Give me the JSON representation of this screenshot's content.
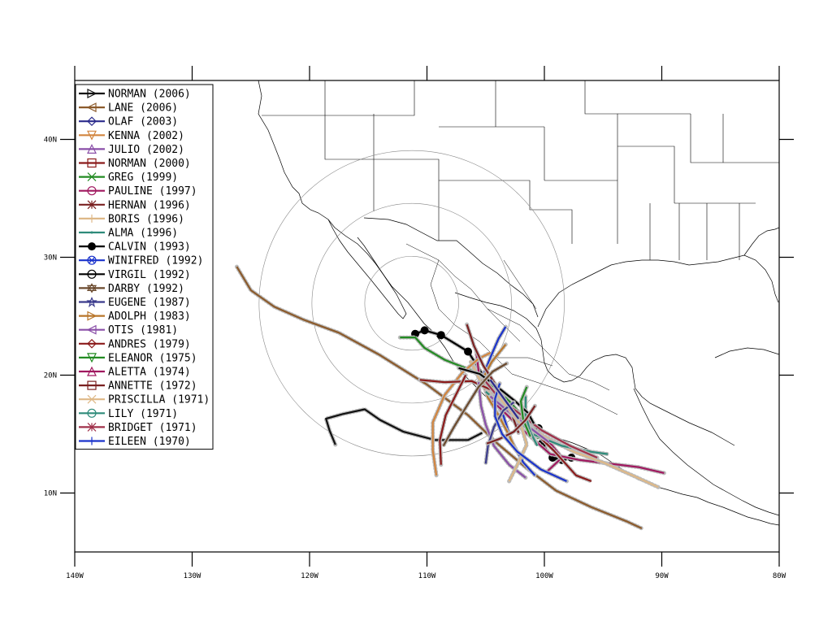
{
  "map": {
    "x_axis": {
      "range": [
        -140,
        -80
      ],
      "ticks": [
        {
          "value": -140,
          "label": "140W"
        },
        {
          "value": -130,
          "label": "130W"
        },
        {
          "value": -120,
          "label": "120W"
        },
        {
          "value": -110,
          "label": "110W"
        },
        {
          "value": -100,
          "label": "100W"
        },
        {
          "value": -90,
          "label": "90W"
        },
        {
          "value": -80,
          "label": "80W"
        }
      ]
    },
    "y_axis": {
      "range": [
        5,
        45
      ],
      "ticks": [
        {
          "value": 10,
          "label": "10N"
        },
        {
          "value": 20,
          "label": "20N"
        },
        {
          "value": 30,
          "label": "30N"
        },
        {
          "value": 40,
          "label": "40N"
        }
      ]
    },
    "range_rings": {
      "center": [
        -111.3,
        26.1
      ],
      "radii_deg": [
        4,
        8.5,
        13
      ]
    },
    "legend": {
      "placement": "top-left",
      "items": [
        {
          "label": "NORMAN (2006)",
          "color": "#111111",
          "marker": "triangle-right",
          "width": 2
        },
        {
          "label": "LANE (2006)",
          "color": "#8b5a2b",
          "marker": "triangle-left",
          "width": 2
        },
        {
          "label": "OLAF (2003)",
          "color": "#2b2b8c",
          "marker": "diamond",
          "width": 2
        },
        {
          "label": "KENNA (2002)",
          "color": "#d2853f",
          "marker": "triangle-down",
          "width": 2
        },
        {
          "label": "JULIO (2002)",
          "color": "#8a4fa8",
          "marker": "triangle-up",
          "width": 2
        },
        {
          "label": "NORMAN (2000)",
          "color": "#8b1a1a",
          "marker": "square",
          "width": 2
        },
        {
          "label": "GREG (1999)",
          "color": "#228b22",
          "marker": "x",
          "width": 2
        },
        {
          "label": "PAULINE (1997)",
          "color": "#a0185f",
          "marker": "circle",
          "width": 2
        },
        {
          "label": "HERNAN (1996)",
          "color": "#7a2020",
          "marker": "asterisk",
          "width": 2
        },
        {
          "label": "BORIS (1996)",
          "color": "#deb887",
          "marker": "plus",
          "width": 2
        },
        {
          "label": "ALMA (1996)",
          "color": "#2e8b7a",
          "marker": "dot",
          "width": 2
        },
        {
          "label": "CALVIN (1993)",
          "color": "#000000",
          "marker": "big-dot",
          "width": 2
        },
        {
          "label": "WINIFRED (1992)",
          "color": "#1a33cc",
          "marker": "circle-x",
          "width": 2
        },
        {
          "label": "VIRGIL (1992)",
          "color": "#000000",
          "marker": "circle-bar",
          "width": 2
        },
        {
          "label": "DARBY (1992)",
          "color": "#6b4a2e",
          "marker": "hexagram",
          "width": 2
        },
        {
          "label": "EUGENE (1987)",
          "color": "#3a3a8c",
          "marker": "star",
          "width": 2
        },
        {
          "label": "ADOLPH (1983)",
          "color": "#b8762a",
          "marker": "triangle-right",
          "width": 2
        },
        {
          "label": "OTIS (1981)",
          "color": "#8a4fa8",
          "marker": "triangle-left",
          "width": 2
        },
        {
          "label": "ANDRES (1979)",
          "color": "#8b1a1a",
          "marker": "diamond",
          "width": 2
        },
        {
          "label": "ELEANOR (1975)",
          "color": "#228b22",
          "marker": "triangle-down",
          "width": 2
        },
        {
          "label": "ALETTA (1974)",
          "color": "#a0185f",
          "marker": "triangle-up",
          "width": 2
        },
        {
          "label": "ANNETTE (1972)",
          "color": "#7a2020",
          "marker": "square",
          "width": 2
        },
        {
          "label": "PRISCILLA (1971)",
          "color": "#deb887",
          "marker": "x",
          "width": 2
        },
        {
          "label": "LILY (1971)",
          "color": "#2e8b7a",
          "marker": "circle",
          "width": 2
        },
        {
          "label": "BRIDGET (1971)",
          "color": "#a0304a",
          "marker": "asterisk",
          "width": 2
        },
        {
          "label": "EILEEN (1970)",
          "color": "#1a33cc",
          "marker": "plus",
          "width": 2
        }
      ]
    },
    "tracks": [
      {
        "name": "LANE (2006)",
        "color": "#8b5a2b",
        "points": [
          [
            -126.2,
            29.2
          ],
          [
            -125,
            27.2
          ],
          [
            -123,
            25.8
          ],
          [
            -120.5,
            24.7
          ],
          [
            -117.5,
            23.6
          ],
          [
            -114,
            21.7
          ],
          [
            -110,
            19.2
          ],
          [
            -106.5,
            16.6
          ],
          [
            -104,
            14.2
          ],
          [
            -101.5,
            12.1
          ],
          [
            -99,
            10.2
          ],
          [
            -96,
            8.8
          ],
          [
            -93,
            7.6
          ],
          [
            -91.7,
            7.0
          ]
        ]
      },
      {
        "name": "NORMAN (2006)",
        "color": "#111111",
        "points": [
          [
            -117.8,
            14.1
          ],
          [
            -118.3,
            15.3
          ],
          [
            -118.6,
            16.3
          ],
          [
            -117.2,
            16.7
          ],
          [
            -115.3,
            17.1
          ],
          [
            -114,
            16.2
          ],
          [
            -112,
            15.2
          ],
          [
            -109.3,
            14.5
          ],
          [
            -106.5,
            14.5
          ],
          [
            -105.3,
            15.1
          ]
        ]
      },
      {
        "name": "CALVIN (1993)",
        "color": "#000000",
        "points": [
          [
            -111,
            23.5
          ],
          [
            -110.2,
            23.8
          ],
          [
            -108.8,
            23.4
          ],
          [
            -106.5,
            22
          ],
          [
            -104.9,
            19.5
          ],
          [
            -103.5,
            17.8
          ],
          [
            -101.8,
            16.3
          ],
          [
            -100.5,
            15.5
          ],
          [
            -100.2,
            14.2
          ],
          [
            -99.3,
            13.0
          ],
          [
            -98.5,
            12.8
          ],
          [
            -97.7,
            13.0
          ]
        ]
      },
      {
        "name": "GREG (1999)",
        "color": "#228b22",
        "points": [
          [
            -112.3,
            23.2
          ],
          [
            -111,
            23.2
          ],
          [
            -110.2,
            22.3
          ],
          [
            -108.5,
            21.3
          ],
          [
            -106.2,
            20.4
          ],
          [
            -104.5,
            19.2
          ],
          [
            -103,
            17.8
          ],
          [
            -101.5,
            16.1
          ],
          [
            -100.5,
            14.6
          ]
        ]
      },
      {
        "name": "WINIFRED (1992)",
        "color": "#1a33cc",
        "points": [
          [
            -103.3,
            24.1
          ],
          [
            -103.9,
            23.1
          ],
          [
            -104.6,
            21.5
          ],
          [
            -105.2,
            20.0
          ],
          [
            -104.5,
            18.4
          ],
          [
            -103.5,
            16.6
          ],
          [
            -102.8,
            14.4
          ],
          [
            -101.8,
            12.6
          ],
          [
            -100.8,
            11.5
          ]
        ]
      },
      {
        "name": "PAULINE (1997)",
        "color": "#a0185f",
        "points": [
          [
            -99.8,
            11.8
          ],
          [
            -98.5,
            13.0
          ],
          [
            -99.4,
            14.1
          ],
          [
            -100.8,
            15.3
          ],
          [
            -102.5,
            16.5
          ],
          [
            -104,
            17.8
          ],
          [
            -105.2,
            19.3
          ]
        ]
      },
      {
        "name": "ALETTA (1974)",
        "color": "#a0185f",
        "points": [
          [
            -89.8,
            11.7
          ],
          [
            -92,
            12.2
          ],
          [
            -94.5,
            12.5
          ],
          [
            -97,
            12.8
          ],
          [
            -99.5,
            13.3
          ],
          [
            -102,
            15.5
          ],
          [
            -104.4,
            17.8
          ],
          [
            -105.5,
            19.5
          ],
          [
            -105.8,
            22.0
          ]
        ]
      },
      {
        "name": "PRISCILLA (1971)",
        "color": "#deb887",
        "points": [
          [
            -90.3,
            10.5
          ],
          [
            -92.5,
            11.5
          ],
          [
            -95,
            12.6
          ],
          [
            -97.5,
            13.5
          ],
          [
            -100,
            14.8
          ],
          [
            -102.3,
            16.3
          ],
          [
            -104.2,
            17.9
          ],
          [
            -105.5,
            19.6
          ],
          [
            -106.3,
            21.2
          ]
        ]
      },
      {
        "name": "KENNA (2002)",
        "color": "#d2853f",
        "points": [
          [
            -109.2,
            11.5
          ],
          [
            -109.5,
            13.6
          ],
          [
            -109.5,
            16.0
          ],
          [
            -108.5,
            18.3
          ],
          [
            -107,
            20.2
          ],
          [
            -105.6,
            21.4
          ],
          [
            -104.6,
            21.9
          ]
        ]
      },
      {
        "name": "ADOLPH (1983)",
        "color": "#b8762a",
        "points": [
          [
            -103.3,
            22.6
          ],
          [
            -104.5,
            21.1
          ],
          [
            -105.3,
            19.6
          ],
          [
            -104.8,
            18.1
          ],
          [
            -103.9,
            16.6
          ],
          [
            -103.0,
            14.9
          ],
          [
            -102.4,
            13.6
          ]
        ]
      },
      {
        "name": "HERNAN (1996)",
        "color": "#7a2020",
        "points": [
          [
            -106.6,
            24.3
          ],
          [
            -106,
            22.5
          ],
          [
            -105.2,
            20.8
          ],
          [
            -104.1,
            19.1
          ],
          [
            -103,
            17.3
          ],
          [
            -102.2,
            15.1
          ]
        ]
      },
      {
        "name": "ANDRES (1979)",
        "color": "#8b1a1a",
        "points": [
          [
            -110.6,
            19.6
          ],
          [
            -108.5,
            19.4
          ],
          [
            -106.2,
            19.5
          ],
          [
            -104.2,
            18.6
          ],
          [
            -103,
            17.2
          ],
          [
            -101.2,
            15.5
          ],
          [
            -99.2,
            13.6
          ],
          [
            -97.3,
            11.5
          ],
          [
            -96.0,
            11.0
          ]
        ]
      },
      {
        "name": "LILY (1971)",
        "color": "#2e8b7a",
        "points": [
          [
            -105,
            18.6
          ],
          [
            -103,
            16.9
          ],
          [
            -101,
            15.0
          ],
          [
            -98.5,
            14.0
          ],
          [
            -96,
            13.5
          ],
          [
            -94.6,
            13.3
          ]
        ]
      },
      {
        "name": "BRIDGET (1971)",
        "color": "#a0304a",
        "points": [
          [
            -95.5,
            13.0
          ],
          [
            -97.8,
            14.0
          ],
          [
            -100.2,
            15.3
          ],
          [
            -102.2,
            16.8
          ],
          [
            -103.9,
            18.1
          ],
          [
            -105.2,
            19.7
          ]
        ]
      },
      {
        "name": "OTIS (1981)",
        "color": "#8a4fa8",
        "points": [
          [
            -101.6,
            11.3
          ],
          [
            -103,
            12.4
          ],
          [
            -104.3,
            14.0
          ],
          [
            -105.0,
            15.8
          ],
          [
            -105.4,
            17.4
          ],
          [
            -105.6,
            19.4
          ]
        ]
      },
      {
        "name": "JULIO (2002)",
        "color": "#8a4fa8",
        "points": [
          [
            -104.6,
            18.2
          ],
          [
            -102.8,
            16.7
          ],
          [
            -101.3,
            15.6
          ],
          [
            -99.6,
            14.3
          ]
        ]
      },
      {
        "name": "NORMAN (2000)",
        "color": "#8b1a1a",
        "points": [
          [
            -108.8,
            12.4
          ],
          [
            -108.9,
            14.5
          ],
          [
            -108.4,
            16.6
          ],
          [
            -107.5,
            18.4
          ],
          [
            -106.7,
            20.0
          ]
        ]
      },
      {
        "name": "BORIS (1996)",
        "color": "#deb887",
        "points": [
          [
            -103,
            11.0
          ],
          [
            -102.2,
            12.6
          ],
          [
            -101.5,
            14.1
          ],
          [
            -102.0,
            15.8
          ],
          [
            -103,
            17.1
          ],
          [
            -104,
            18.3
          ]
        ]
      },
      {
        "name": "ALMA (1996)",
        "color": "#2e8b7a",
        "points": [
          [
            -101.6,
            18.2
          ],
          [
            -101.6,
            16.6
          ],
          [
            -101.2,
            15.2
          ],
          [
            -100.6,
            14.0
          ]
        ]
      },
      {
        "name": "VIRGIL (1992)",
        "color": "#000000",
        "points": [
          [
            -107.3,
            20.6
          ],
          [
            -105.5,
            20.1
          ],
          [
            -104.0,
            19.0
          ],
          [
            -102.5,
            17.8
          ],
          [
            -101.4,
            16.8
          ],
          [
            -100.9,
            15.9
          ]
        ]
      },
      {
        "name": "DARBY (1992)",
        "color": "#6b4a2e",
        "points": [
          [
            -103.2,
            21.0
          ],
          [
            -104.4,
            20.3
          ],
          [
            -105.6,
            19.0
          ],
          [
            -106.6,
            17.4
          ],
          [
            -107.7,
            15.6
          ],
          [
            -108.6,
            14.0
          ]
        ]
      },
      {
        "name": "EUGENE (1987)",
        "color": "#3a3a8c",
        "points": [
          [
            -102.6,
            17.7
          ],
          [
            -103.5,
            17.0
          ],
          [
            -104.3,
            15.6
          ],
          [
            -104.8,
            14.0
          ],
          [
            -105.0,
            12.5
          ]
        ]
      },
      {
        "name": "ELEANOR (1975)",
        "color": "#228b22",
        "points": [
          [
            -101.5,
            19.0
          ],
          [
            -102.0,
            17.8
          ],
          [
            -101.8,
            16.2
          ],
          [
            -101.2,
            14.8
          ]
        ]
      },
      {
        "name": "ANNETTE (1972)",
        "color": "#7a2020",
        "points": [
          [
            -100.8,
            17.4
          ],
          [
            -101.6,
            16.2
          ],
          [
            -102.6,
            15.2
          ],
          [
            -103.8,
            14.6
          ],
          [
            -104.9,
            14.2
          ]
        ]
      },
      {
        "name": "EILEEN (1970)",
        "color": "#1a33cc",
        "points": [
          [
            -103.8,
            19.3
          ],
          [
            -104.2,
            18.0
          ],
          [
            -104.2,
            16.5
          ],
          [
            -103.6,
            15.0
          ],
          [
            -102.3,
            13.5
          ],
          [
            -100.3,
            12.0
          ],
          [
            -98.1,
            11.0
          ]
        ]
      },
      {
        "name": "OLAF (2003)",
        "color": "#2b2b8c",
        "points": [
          [
            -102.2,
            16.3
          ],
          [
            -103.0,
            17.4
          ],
          [
            -103.8,
            18.5
          ],
          [
            -104.6,
            19.6
          ]
        ]
      }
    ]
  }
}
